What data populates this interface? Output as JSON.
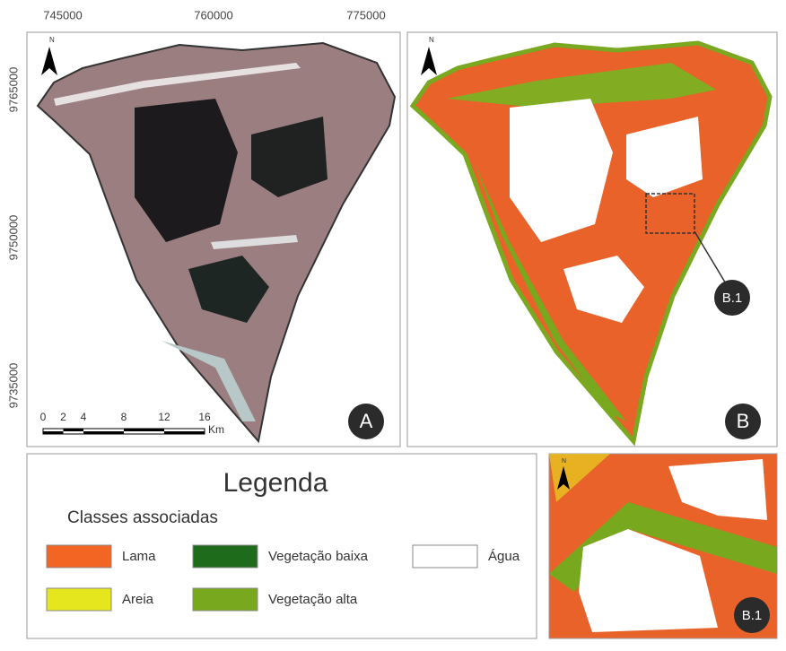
{
  "coordinates": {
    "x_labels": [
      "745000",
      "760000",
      "775000"
    ],
    "y_labels": [
      "9765000",
      "9750000",
      "9735000"
    ]
  },
  "north": "N",
  "scale_bar": {
    "ticks": [
      0,
      2,
      4,
      8,
      12,
      16
    ],
    "unit": "Km"
  },
  "panels": {
    "a": "A",
    "b": "B",
    "callout": "B.1",
    "inset": "B.1"
  },
  "legend": {
    "title": "Legenda",
    "subtitle": "Classes associadas",
    "items": [
      {
        "label": "Lama",
        "color": "#f26522"
      },
      {
        "label": "Areia",
        "color": "#e6e61e"
      },
      {
        "label": "Vegetação baixa",
        "color": "#1f6b1c"
      },
      {
        "label": "Vegetação alta",
        "color": "#78a81e"
      },
      {
        "label": "Água",
        "color": "#ffffff"
      }
    ]
  }
}
